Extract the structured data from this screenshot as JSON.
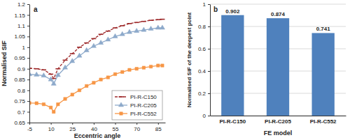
{
  "chart_data": [
    {
      "type": "line",
      "title": "a",
      "x_label": "Eccentric angle",
      "y_label": "Normalised SIF",
      "x": [
        -5,
        0,
        5,
        10,
        12,
        15,
        20,
        25,
        30,
        35,
        40,
        45,
        50,
        55,
        60,
        65,
        70,
        75,
        80,
        85,
        88
      ],
      "series": [
        {
          "name": "PI-R-C150",
          "color": "#9e2a2b",
          "marker": "dash",
          "line_style": "dashed",
          "values": [
            0.902,
            0.9,
            0.895,
            0.875,
            0.855,
            0.9,
            0.94,
            0.97,
            1.0,
            1.02,
            1.04,
            1.06,
            1.075,
            1.09,
            1.1,
            1.11,
            1.115,
            1.12,
            1.125,
            1.128,
            1.13
          ]
        },
        {
          "name": "PI-R-C205",
          "color": "#8eaacb",
          "marker": "triangle",
          "line_style": "solid",
          "values": [
            0.874,
            0.872,
            0.868,
            0.85,
            0.83,
            0.87,
            0.905,
            0.935,
            0.96,
            0.985,
            1.005,
            1.02,
            1.035,
            1.05,
            1.06,
            1.07,
            1.075,
            1.08,
            1.085,
            1.09,
            1.09
          ]
        },
        {
          "name": "PI-R-C552",
          "color": "#f79646",
          "marker": "square",
          "line_style": "solid",
          "values": [
            0.741,
            0.74,
            0.735,
            0.72,
            0.7,
            0.735,
            0.76,
            0.78,
            0.8,
            0.82,
            0.835,
            0.85,
            0.86,
            0.875,
            0.885,
            0.895,
            0.9,
            0.905,
            0.91,
            0.915,
            0.915
          ]
        }
      ],
      "xlim": [
        -5,
        90
      ],
      "xticks": [
        -5,
        10,
        25,
        40,
        55,
        70,
        85
      ],
      "ylim": [
        0.65,
        1.2
      ],
      "yticks": [
        0.65,
        0.7,
        0.75,
        0.8,
        0.85,
        0.9,
        0.95,
        1,
        1.05,
        1.1,
        1.15,
        1.2
      ],
      "grid": false,
      "legend": "lower right"
    },
    {
      "type": "bar",
      "title": "b",
      "x_label": "FE model",
      "y_label": "Normalised SIF of the deepest point",
      "categories": [
        "PI-R-C150",
        "PI-R-C205",
        "PI-R-C552"
      ],
      "values": [
        0.902,
        0.874,
        0.741
      ],
      "color": "#4f81bd",
      "ylim": [
        0,
        1
      ],
      "yticks": [
        0,
        0.2,
        0.4,
        0.6,
        0.8,
        1
      ],
      "grid": true,
      "data_labels": true
    }
  ]
}
